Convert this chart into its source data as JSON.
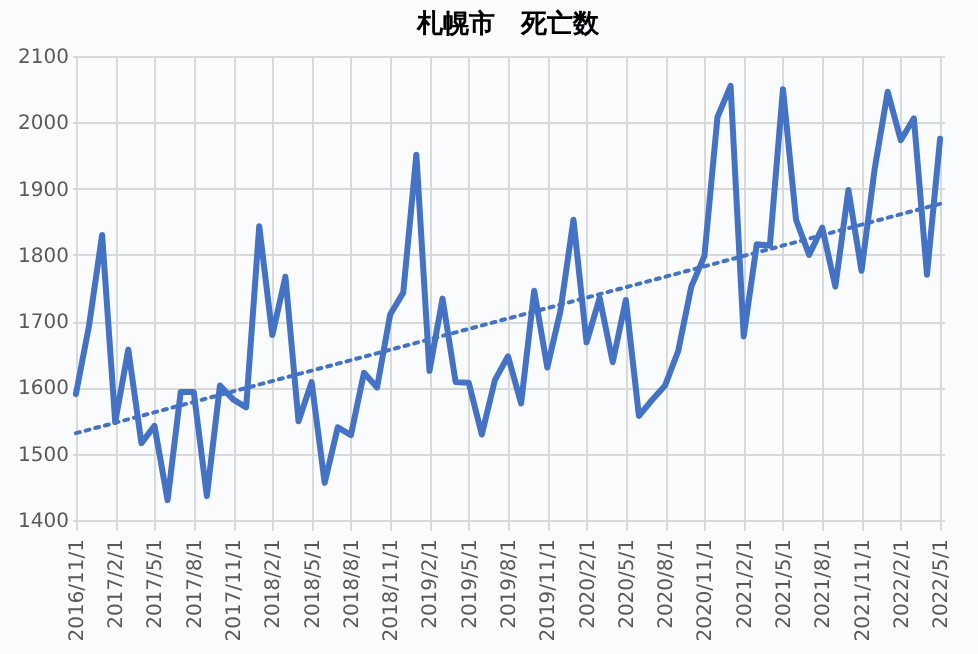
{
  "chart_data": {
    "type": "line",
    "title": "札幌市　死亡数",
    "categories": [
      "2016/11/1",
      null,
      null,
      "2017/2/1",
      null,
      null,
      "2017/5/1",
      null,
      null,
      "2017/8/1",
      null,
      null,
      "2017/11/1",
      null,
      null,
      "2018/2/1",
      null,
      null,
      "2018/5/1",
      null,
      null,
      "2018/8/1",
      null,
      null,
      "2018/11/1",
      null,
      null,
      "2019/2/1",
      null,
      null,
      "2019/5/1",
      null,
      null,
      "2019/8/1",
      null,
      null,
      "2019/11/1",
      null,
      null,
      "2020/2/1",
      null,
      null,
      "2020/5/1",
      null,
      null,
      "2020/8/1",
      null,
      null,
      "2020/11/1",
      null,
      null,
      "2021/2/1",
      null,
      null,
      "2021/5/1",
      null,
      null,
      "2021/8/1",
      null,
      null,
      "2021/11/1",
      null,
      null,
      "2022/2/1",
      null,
      null,
      "2022/5/1"
    ],
    "series": [
      {
        "color": "#4472c4",
        "line_style": "solid",
        "values": [
          1590,
          1693,
          1830,
          1548,
          1657,
          1516,
          1542,
          1430,
          1593,
          1593,
          1436,
          1603,
          1582,
          1570,
          1843,
          1679,
          1767,
          1549,
          1608,
          1456,
          1540,
          1528,
          1622,
          1600,
          1710,
          1743,
          1951,
          1625,
          1734,
          1608,
          1607,
          1529,
          1611,
          1647,
          1576,
          1746,
          1630,
          1715,
          1853,
          1668,
          1735,
          1638,
          1732,
          1557,
          1581,
          1603,
          1655,
          1752,
          1798,
          2008,
          2055,
          1677,
          1816,
          1814,
          2050,
          1853,
          1800,
          1841,
          1752,
          1898,
          1776,
          1929,
          2046,
          1973,
          2006,
          1770,
          1975
        ]
      },
      {
        "type": "line",
        "color": "#4472c4",
        "line_style": "dotted",
        "x": [
          "2016/11/1",
          "2022/5/1"
        ],
        "values": [
          1531,
          1877
        ]
      }
    ],
    "ylim": [
      1400,
      2100
    ],
    "yticks": [
      1400,
      1500,
      1600,
      1700,
      1800,
      1900,
      2000,
      2100
    ],
    "grid": true,
    "marker": "none"
  }
}
